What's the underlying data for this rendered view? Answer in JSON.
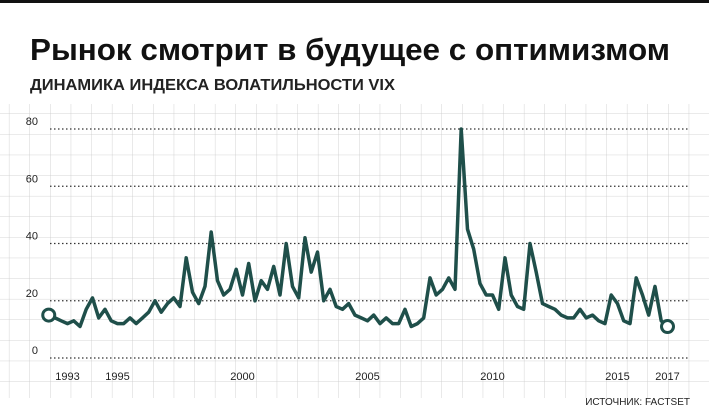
{
  "chart_data": {
    "type": "line",
    "title": "Рынок смотрит в будущее с оптимизмом",
    "subtitle": "ДИНАМИКА ИНДЕКСА ВОЛАТИЛЬНОСТИ VIX",
    "source": "ИСТОЧНИК: FACTSET",
    "x": [
      1992.25,
      1992.5,
      1992.75,
      1993.0,
      1993.25,
      1993.5,
      1993.75,
      1994.0,
      1994.25,
      1994.5,
      1994.75,
      1995.0,
      1995.25,
      1995.5,
      1995.75,
      1996.0,
      1996.25,
      1996.5,
      1996.75,
      1997.0,
      1997.25,
      1997.5,
      1997.75,
      1998.0,
      1998.25,
      1998.5,
      1998.75,
      1999.0,
      1999.25,
      1999.5,
      1999.75,
      2000.0,
      2000.25,
      2000.5,
      2000.75,
      2001.0,
      2001.25,
      2001.5,
      2001.75,
      2002.0,
      2002.25,
      2002.5,
      2002.75,
      2003.0,
      2003.25,
      2003.5,
      2003.75,
      2004.0,
      2004.25,
      2004.5,
      2004.75,
      2005.0,
      2005.25,
      2005.5,
      2005.75,
      2006.0,
      2006.25,
      2006.5,
      2006.75,
      2007.0,
      2007.25,
      2007.5,
      2007.75,
      2008.0,
      2008.25,
      2008.5,
      2008.75,
      2009.0,
      2009.25,
      2009.5,
      2009.75,
      2010.0,
      2010.25,
      2010.5,
      2010.75,
      2011.0,
      2011.25,
      2011.5,
      2011.75,
      2012.0,
      2012.25,
      2012.5,
      2012.75,
      2013.0,
      2013.25,
      2013.5,
      2013.75,
      2014.0,
      2014.25,
      2014.5,
      2014.75,
      2015.0,
      2015.25,
      2015.5,
      2015.75,
      2016.0,
      2016.25,
      2016.5,
      2016.75,
      2017.0
    ],
    "series": [
      {
        "color": "#1f4f4a",
        "values": [
          15,
          14,
          13,
          12,
          13,
          11,
          17,
          21,
          14,
          17,
          13,
          12,
          12,
          14,
          12,
          14,
          16,
          20,
          16,
          19,
          21,
          18,
          35,
          23,
          19,
          25,
          44,
          27,
          22,
          24,
          31,
          22,
          33,
          20,
          27,
          24,
          32,
          22,
          40,
          25,
          21,
          42,
          30,
          37,
          20,
          24,
          18,
          17,
          19,
          15,
          14,
          13,
          15,
          12,
          14,
          12,
          12,
          17,
          11,
          12,
          14,
          28,
          22,
          24,
          28,
          24,
          80,
          45,
          38,
          26,
          22,
          22,
          17,
          35,
          22,
          18,
          17,
          40,
          30,
          19,
          18,
          17,
          15,
          14,
          14,
          17,
          14,
          15,
          13,
          12,
          22,
          19,
          13,
          12,
          28,
          22,
          15,
          25,
          13,
          11
        ]
      }
    ],
    "xlim": [
      1991.5,
      2017.9
    ],
    "xticks": [
      1993,
      1995,
      2000,
      2005,
      2010,
      2015,
      2017
    ],
    "ylim": [
      0,
      80
    ],
    "yticks": [
      0,
      20,
      40,
      60,
      80
    ],
    "grid": true
  }
}
